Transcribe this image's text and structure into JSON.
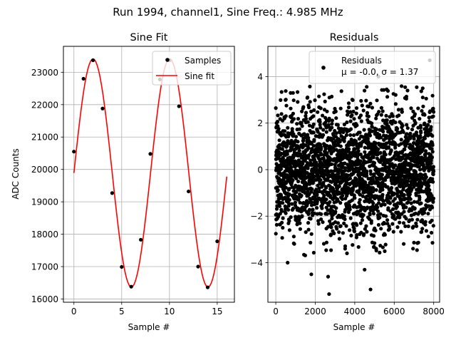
{
  "suptitle": "Run 1994, channel1, Sine Freq.: 4.985 MHz",
  "chart_data": [
    {
      "type": "scatter+line",
      "title": "Sine Fit",
      "xlabel": "Sample #",
      "ylabel": "ADC Counts",
      "xlim": [
        -1.1,
        16.8
      ],
      "ylim": [
        15900,
        23800
      ],
      "xticks": [
        0,
        5,
        10,
        15
      ],
      "xtick_labels": [
        "0",
        "5",
        "10",
        "15"
      ],
      "yticks": [
        16000,
        17000,
        18000,
        19000,
        20000,
        21000,
        22000,
        23000
      ],
      "ytick_labels": [
        "16000",
        "17000",
        "18000",
        "19000",
        "20000",
        "21000",
        "22000",
        "23000"
      ],
      "grid": true,
      "legend_position": "upper right",
      "series": [
        {
          "name": "Samples",
          "kind": "scatter",
          "color": "#000000",
          "x": [
            0,
            1,
            2,
            3,
            4,
            5,
            6,
            7,
            8,
            9,
            10,
            11,
            12,
            13,
            14,
            15
          ],
          "y": [
            20550,
            22800,
            23370,
            21880,
            19270,
            16990,
            16380,
            17830,
            20480,
            22780,
            23370,
            21950,
            19320,
            17000,
            16360,
            17780
          ]
        },
        {
          "name": "Sine fit",
          "kind": "line",
          "color": "#ff0000",
          "x_range": [
            0,
            16
          ],
          "model": {
            "offset": 19890,
            "amplitude": 3520,
            "period": 8.02,
            "phase": 0.0
          }
        }
      ]
    },
    {
      "type": "scatter",
      "title": "Residuals",
      "xlabel": "Sample #",
      "ylabel": "",
      "xlim": [
        -400,
        8300
      ],
      "ylim": [
        -5.7,
        5.3
      ],
      "xticks": [
        0,
        2000,
        4000,
        6000,
        8000
      ],
      "xtick_labels": [
        "0",
        "2000",
        "4000",
        "6000",
        "8000"
      ],
      "yticks": [
        -4,
        -2,
        0,
        2,
        4
      ],
      "ytick_labels": [
        "−4",
        "−2",
        "0",
        "2",
        "4"
      ],
      "grid": true,
      "legend_position": "upper right",
      "series": [
        {
          "name": "Residuals",
          "kind": "scatter",
          "color": "#000000",
          "n_points": 8000,
          "mean": -0.0,
          "sigma": 1.37,
          "outliers": [
            {
              "x": 2700,
              "y": -5.35
            },
            {
              "x": 4800,
              "y": -5.15
            },
            {
              "x": 2650,
              "y": -4.6
            },
            {
              "x": 1800,
              "y": -4.5
            },
            {
              "x": 4500,
              "y": -4.3
            },
            {
              "x": 600,
              "y": -4.0
            },
            {
              "x": 7800,
              "y": 4.7
            },
            {
              "x": 2400,
              "y": 4.4
            },
            {
              "x": 5200,
              "y": 4.0
            }
          ]
        }
      ],
      "legend_label": "Residuals",
      "legend_stats": "μ = -0.0, σ = 1.37"
    }
  ]
}
